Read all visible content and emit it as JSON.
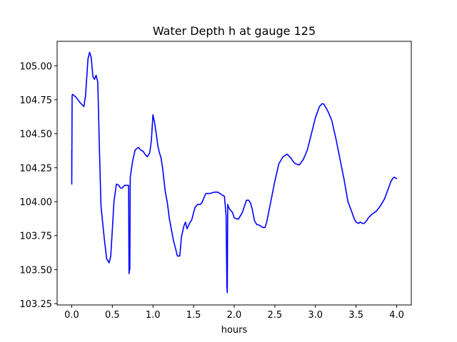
{
  "chart_data": {
    "type": "line",
    "title": "Water Depth h at gauge 125",
    "xlabel": "hours",
    "ylabel": "",
    "xlim": [
      -0.18,
      4.18
    ],
    "ylim": [
      103.24,
      105.18
    ],
    "xticks": [
      0.0,
      0.5,
      1.0,
      1.5,
      2.0,
      2.5,
      3.0,
      3.5,
      4.0
    ],
    "xtick_labels": [
      "0.0",
      "0.5",
      "1.0",
      "1.5",
      "2.0",
      "2.5",
      "3.0",
      "3.5",
      "4.0"
    ],
    "yticks": [
      103.25,
      103.5,
      103.75,
      104.0,
      104.25,
      104.5,
      104.75,
      105.0
    ],
    "ytick_labels": [
      "103.25",
      "103.50",
      "103.75",
      "104.00",
      "104.25",
      "104.50",
      "104.75",
      "105.00"
    ],
    "grid": false,
    "legend": "none",
    "series": [
      {
        "color": "#0000ff",
        "x": [
          0.0,
          0.0,
          0.005,
          0.01,
          0.05,
          0.1,
          0.15,
          0.17,
          0.2,
          0.22,
          0.24,
          0.26,
          0.28,
          0.3,
          0.32,
          0.34,
          0.36,
          0.38,
          0.4,
          0.43,
          0.46,
          0.48,
          0.5,
          0.52,
          0.55,
          0.58,
          0.6,
          0.62,
          0.65,
          0.7,
          0.705,
          0.71,
          0.715,
          0.72,
          0.725,
          0.73,
          0.75,
          0.78,
          0.82,
          0.85,
          0.88,
          0.9,
          0.93,
          0.96,
          0.98,
          1.0,
          1.02,
          1.04,
          1.06,
          1.08,
          1.1,
          1.12,
          1.15,
          1.18,
          1.2,
          1.25,
          1.28,
          1.3,
          1.33,
          1.35,
          1.38,
          1.4,
          1.42,
          1.45,
          1.47,
          1.48,
          1.5,
          1.52,
          1.55,
          1.58,
          1.6,
          1.65,
          1.7,
          1.75,
          1.8,
          1.85,
          1.88,
          1.9,
          1.91,
          1.915,
          1.92,
          1.925,
          1.93,
          1.95,
          1.98,
          2.0,
          2.05,
          2.1,
          2.15,
          2.18,
          2.2,
          2.22,
          2.25,
          2.28,
          2.3,
          2.33,
          2.35,
          2.38,
          2.4,
          2.42,
          2.45,
          2.5,
          2.55,
          2.6,
          2.65,
          2.7,
          2.72,
          2.75,
          2.8,
          2.85,
          2.9,
          2.95,
          3.0,
          3.05,
          3.08,
          3.1,
          3.12,
          3.15,
          3.2,
          3.25,
          3.3,
          3.35,
          3.4,
          3.45,
          3.48,
          3.5,
          3.53,
          3.55,
          3.58,
          3.6,
          3.63,
          3.65,
          3.7,
          3.75,
          3.8,
          3.85,
          3.9,
          3.93,
          3.95,
          3.97,
          4.0
        ],
        "y": [
          104.38,
          104.13,
          104.78,
          104.79,
          104.77,
          104.73,
          104.7,
          104.78,
          105.05,
          105.1,
          105.06,
          104.92,
          104.9,
          104.93,
          104.88,
          104.4,
          103.97,
          103.85,
          103.73,
          103.58,
          103.55,
          103.6,
          103.8,
          104.0,
          104.13,
          104.12,
          104.1,
          104.1,
          104.12,
          104.12,
          103.47,
          103.5,
          103.5,
          104.18,
          104.2,
          104.22,
          104.3,
          104.38,
          104.4,
          104.38,
          104.37,
          104.35,
          104.33,
          104.36,
          104.45,
          104.64,
          104.58,
          104.5,
          104.41,
          104.36,
          104.32,
          104.24,
          104.08,
          103.98,
          103.88,
          103.72,
          103.65,
          103.6,
          103.6,
          103.74,
          103.82,
          103.85,
          103.8,
          103.84,
          103.86,
          103.87,
          103.92,
          103.96,
          103.98,
          103.98,
          103.99,
          104.06,
          104.06,
          104.07,
          104.07,
          104.05,
          104.04,
          103.9,
          103.37,
          103.33,
          103.98,
          103.97,
          103.96,
          103.94,
          103.92,
          103.88,
          103.87,
          103.92,
          104.01,
          104.01,
          103.99,
          103.95,
          103.86,
          103.83,
          103.83,
          103.82,
          103.81,
          103.81,
          103.85,
          103.91,
          104.0,
          104.15,
          104.28,
          104.33,
          104.35,
          104.32,
          104.3,
          104.28,
          104.27,
          104.31,
          104.38,
          104.5,
          104.62,
          104.7,
          104.72,
          104.72,
          104.7,
          104.67,
          104.6,
          104.47,
          104.32,
          104.17,
          104.0,
          103.92,
          103.87,
          103.85,
          103.84,
          103.85,
          103.84,
          103.84,
          103.86,
          103.88,
          103.91,
          103.93,
          103.97,
          104.02,
          104.1,
          104.15,
          104.17,
          104.18,
          104.17
        ]
      }
    ]
  }
}
